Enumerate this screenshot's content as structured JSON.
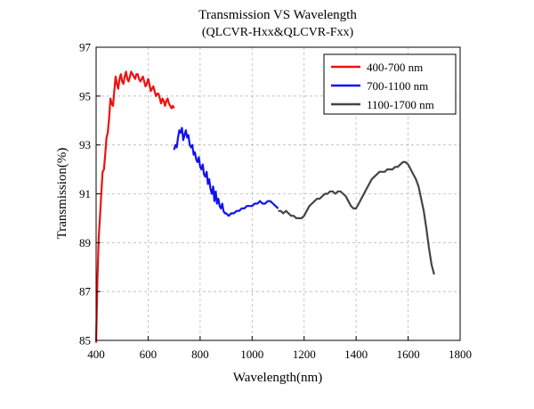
{
  "chart_data": {
    "type": "line",
    "title": "Transmission VS Wavelength",
    "subtitle": "(QLCVR-Hxx&QLCVR-Fxx)",
    "xlabel": "Wavelength(nm)",
    "ylabel": "Transmission(%)",
    "xlim": [
      400,
      1800
    ],
    "ylim": [
      85,
      97
    ],
    "xticks": [
      400,
      600,
      800,
      1000,
      1200,
      1400,
      1600,
      1800
    ],
    "yticks": [
      85,
      87,
      89,
      91,
      93,
      95,
      97
    ],
    "grid": true,
    "legend_position": "top-right",
    "series": [
      {
        "name": "400-700 nm",
        "color": "#ee1111",
        "x": [
          400,
          405,
          410,
          415,
          420,
          425,
          430,
          435,
          440,
          445,
          450,
          455,
          460,
          465,
          470,
          475,
          480,
          485,
          490,
          495,
          500,
          505,
          510,
          515,
          520,
          525,
          530,
          535,
          540,
          545,
          550,
          555,
          560,
          565,
          570,
          575,
          580,
          585,
          590,
          595,
          600,
          605,
          610,
          615,
          620,
          625,
          630,
          635,
          640,
          645,
          650,
          655,
          660,
          665,
          670,
          675,
          680,
          685,
          690,
          695,
          700
        ],
        "y": [
          84.9,
          87.5,
          89.2,
          90.1,
          91.0,
          91.9,
          92.0,
          92.6,
          93.3,
          93.5,
          94.1,
          94.9,
          94.7,
          94.6,
          95.2,
          95.8,
          95.5,
          95.3,
          95.7,
          95.9,
          95.6,
          95.5,
          95.8,
          96.0,
          95.7,
          95.6,
          95.8,
          96.0,
          95.9,
          95.8,
          95.7,
          95.9,
          95.9,
          95.7,
          95.6,
          95.7,
          95.8,
          95.6,
          95.4,
          95.5,
          95.7,
          95.5,
          95.2,
          95.3,
          95.4,
          95.2,
          95.0,
          95.1,
          95.1,
          94.9,
          94.7,
          94.9,
          94.8,
          94.6,
          94.8,
          94.9,
          94.7,
          94.6,
          94.5,
          94.6,
          94.5
        ]
      },
      {
        "name": "700-1100 nm",
        "color": "#1111ee",
        "x": [
          700,
          705,
          710,
          715,
          720,
          725,
          730,
          735,
          740,
          745,
          750,
          755,
          760,
          765,
          770,
          775,
          780,
          785,
          790,
          795,
          800,
          805,
          810,
          815,
          820,
          825,
          830,
          835,
          840,
          845,
          850,
          855,
          860,
          865,
          870,
          875,
          880,
          885,
          890,
          895,
          900,
          910,
          920,
          930,
          940,
          950,
          960,
          970,
          980,
          990,
          1000,
          1010,
          1020,
          1030,
          1040,
          1050,
          1060,
          1070,
          1080,
          1090,
          1100
        ],
        "y": [
          92.8,
          93.0,
          92.9,
          93.3,
          93.6,
          93.5,
          93.7,
          93.2,
          93.4,
          93.6,
          93.3,
          93.4,
          93.0,
          92.9,
          93.0,
          92.6,
          92.7,
          92.4,
          92.3,
          92.5,
          92.1,
          92.0,
          92.2,
          91.8,
          91.7,
          91.9,
          91.4,
          91.6,
          91.2,
          91.0,
          91.3,
          90.7,
          91.1,
          90.6,
          90.8,
          90.5,
          90.4,
          90.6,
          90.3,
          90.2,
          90.2,
          90.1,
          90.2,
          90.2,
          90.3,
          90.3,
          90.4,
          90.4,
          90.5,
          90.5,
          90.5,
          90.6,
          90.6,
          90.7,
          90.6,
          90.6,
          90.7,
          90.7,
          90.6,
          90.5,
          90.4
        ]
      },
      {
        "name": "1100-1700 nm",
        "color": "#444444",
        "x": [
          1100,
          1110,
          1120,
          1130,
          1140,
          1150,
          1160,
          1170,
          1180,
          1190,
          1200,
          1210,
          1220,
          1230,
          1240,
          1250,
          1260,
          1270,
          1280,
          1290,
          1300,
          1310,
          1320,
          1330,
          1340,
          1350,
          1360,
          1370,
          1380,
          1390,
          1400,
          1410,
          1420,
          1430,
          1440,
          1450,
          1460,
          1470,
          1480,
          1490,
          1500,
          1510,
          1520,
          1530,
          1540,
          1550,
          1560,
          1570,
          1580,
          1590,
          1600,
          1610,
          1620,
          1630,
          1640,
          1650,
          1660,
          1670,
          1680,
          1690,
          1700
        ],
        "y": [
          90.3,
          90.3,
          90.2,
          90.3,
          90.2,
          90.1,
          90.1,
          90.0,
          90.0,
          90.0,
          90.1,
          90.3,
          90.5,
          90.6,
          90.7,
          90.8,
          90.8,
          90.9,
          91.0,
          91.0,
          91.1,
          91.1,
          91.0,
          91.1,
          91.1,
          91.0,
          90.9,
          90.7,
          90.5,
          90.4,
          90.4,
          90.6,
          90.8,
          91.0,
          91.2,
          91.4,
          91.6,
          91.7,
          91.8,
          91.9,
          91.9,
          91.9,
          92.0,
          92.0,
          92.0,
          92.1,
          92.1,
          92.2,
          92.3,
          92.3,
          92.2,
          92.0,
          91.8,
          91.6,
          91.3,
          90.8,
          90.3,
          89.6,
          88.8,
          88.1,
          87.7
        ]
      }
    ]
  }
}
